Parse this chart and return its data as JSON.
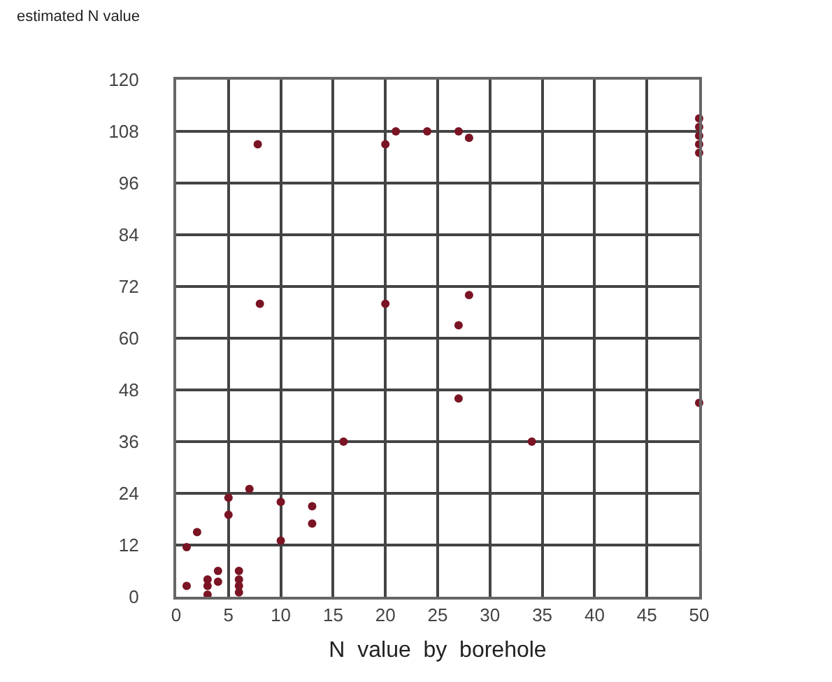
{
  "chart_data": {
    "type": "scatter",
    "xlabel": "N  value  by  borehole",
    "ylabel": "estimated N value",
    "x": [
      1,
      1,
      2,
      3,
      3,
      3,
      4,
      4,
      5,
      5,
      6,
      6,
      6,
      6,
      7,
      10,
      10,
      13,
      13,
      7.8,
      20,
      21,
      24,
      27,
      28,
      8,
      20,
      28,
      27,
      27,
      16,
      34,
      50,
      50,
      50,
      50,
      50,
      50
    ],
    "series": [
      {
        "color": "#7a1424",
        "values": [
          2.5,
          11.5,
          15,
          4,
          2.5,
          0.5,
          6,
          3.5,
          23,
          19,
          6,
          4,
          2.5,
          1,
          25,
          22,
          13,
          21,
          17,
          105,
          105,
          108,
          108,
          108,
          106.5,
          68,
          68,
          70,
          63,
          46,
          36,
          36,
          111,
          109,
          107,
          105,
          103,
          45
        ]
      }
    ],
    "xlim": [
      0,
      50
    ],
    "xticks": [
      0,
      5,
      10,
      15,
      20,
      25,
      30,
      35,
      40,
      45,
      50
    ],
    "ylim": [
      0,
      120
    ],
    "yticks": [
      0,
      12,
      24,
      36,
      48,
      60,
      72,
      84,
      96,
      108,
      120
    ],
    "grid": true,
    "marker": "circle"
  }
}
